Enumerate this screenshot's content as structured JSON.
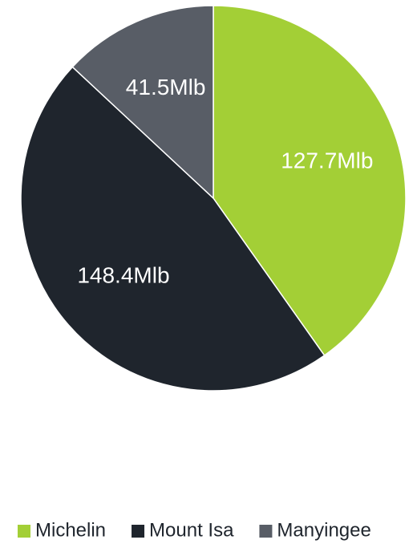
{
  "chart_data": {
    "type": "pie",
    "categories": [
      "Michelin",
      "Mount Isa",
      "Manyingee"
    ],
    "values": [
      127.7,
      148.4,
      41.5
    ],
    "value_labels": [
      "127.7Mlb",
      "148.4Mlb",
      "41.5Mlb"
    ],
    "colors": [
      "#a3cf36",
      "#1f252d",
      "#585d66"
    ],
    "legend": "bottom"
  }
}
